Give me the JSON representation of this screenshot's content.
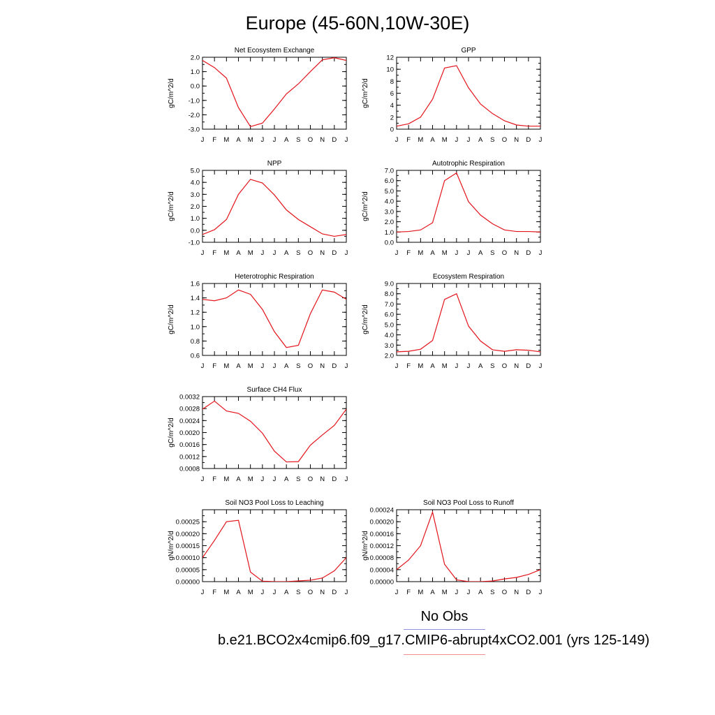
{
  "title": "Europe (45-60N,10W-30E)",
  "legend": {
    "obs_label": "No Obs",
    "obs_color": "#8f8fe6",
    "case_label": "b.e21.BCO2x4cmip6.f09_g17.CMIP6-abrupt4xCO2.001 (yrs 125-149)",
    "case_color": "#f08f8f"
  },
  "line_color": "#e3141b",
  "chart_data": [
    {
      "type": "line",
      "title": "Net Ecosystem Exchange",
      "ylabel": "gC/m^2/d",
      "categories": [
        "J",
        "F",
        "M",
        "A",
        "M",
        "J",
        "J",
        "A",
        "S",
        "O",
        "N",
        "D",
        "J"
      ],
      "values": [
        1.78,
        1.28,
        0.55,
        -1.5,
        -2.82,
        -2.58,
        -1.6,
        -0.55,
        0.15,
        1.0,
        1.82,
        1.97,
        1.78
      ],
      "ylim": [
        -3.0,
        2.0
      ],
      "yticks": [
        2.0,
        1.0,
        0.0,
        -1.0,
        -2.0,
        -3.0
      ],
      "ytick_labels": [
        "2.0",
        "1.0",
        "0.0",
        "-1.0",
        "-2.0",
        "-3.0"
      ],
      "yminor": 0.5
    },
    {
      "type": "line",
      "title": "GPP",
      "ylabel": "gC/m^2/d",
      "categories": [
        "J",
        "F",
        "M",
        "A",
        "M",
        "J",
        "J",
        "A",
        "S",
        "O",
        "N",
        "D",
        "J"
      ],
      "values": [
        0.5,
        0.9,
        2.0,
        5.0,
        10.2,
        10.6,
        6.9,
        4.2,
        2.6,
        1.4,
        0.7,
        0.5,
        0.5
      ],
      "ylim": [
        0,
        12
      ],
      "yticks": [
        12,
        10,
        8,
        6,
        4,
        2,
        0
      ],
      "ytick_labels": [
        "12",
        "10",
        "8",
        "6",
        "4",
        "2",
        "0"
      ],
      "yminor": 1
    },
    {
      "type": "line",
      "title": "NPP",
      "ylabel": "gC/m^2/d",
      "categories": [
        "J",
        "F",
        "M",
        "A",
        "M",
        "J",
        "J",
        "A",
        "S",
        "O",
        "N",
        "D",
        "J"
      ],
      "values": [
        -0.35,
        0.05,
        0.9,
        3.0,
        4.25,
        3.95,
        2.95,
        1.7,
        0.9,
        0.3,
        -0.3,
        -0.5,
        -0.35
      ],
      "ylim": [
        -1.0,
        5.0
      ],
      "yticks": [
        5.0,
        4.0,
        3.0,
        2.0,
        1.0,
        0.0,
        -1.0
      ],
      "ytick_labels": [
        "5.0",
        "4.0",
        "3.0",
        "2.0",
        "1.0",
        "0.0",
        "-1.0"
      ],
      "yminor": 0.5
    },
    {
      "type": "line",
      "title": "Autotrophic Respiration",
      "ylabel": "gC/m^2/d",
      "categories": [
        "J",
        "F",
        "M",
        "A",
        "M",
        "J",
        "J",
        "A",
        "S",
        "O",
        "N",
        "D",
        "J"
      ],
      "values": [
        1.0,
        1.05,
        1.2,
        1.9,
        6.0,
        6.75,
        3.95,
        2.65,
        1.8,
        1.2,
        1.05,
        1.05,
        1.0
      ],
      "ylim": [
        0,
        7.0
      ],
      "yticks": [
        7.0,
        6.0,
        5.0,
        4.0,
        3.0,
        2.0,
        1.0,
        0.0
      ],
      "ytick_labels": [
        "7.0",
        "6.0",
        "5.0",
        "4.0",
        "3.0",
        "2.0",
        "1.0",
        "0.0"
      ],
      "yminor": 0.5
    },
    {
      "type": "line",
      "title": "Heterotrophic Respiration",
      "ylabel": "gC/m^2/d",
      "categories": [
        "J",
        "F",
        "M",
        "A",
        "M",
        "J",
        "J",
        "A",
        "S",
        "O",
        "N",
        "D",
        "J"
      ],
      "values": [
        1.38,
        1.36,
        1.4,
        1.51,
        1.45,
        1.24,
        0.93,
        0.71,
        0.74,
        1.18,
        1.51,
        1.48,
        1.38
      ],
      "ylim": [
        0.6,
        1.6
      ],
      "yticks": [
        1.6,
        1.4,
        1.2,
        1.0,
        0.8,
        0.6
      ],
      "ytick_labels": [
        "1.6",
        "1.4",
        "1.2",
        "1.0",
        "0.8",
        "0.6"
      ],
      "yminor": 0.1
    },
    {
      "type": "line",
      "title": "Ecosystem Respiration",
      "ylabel": "gC/m^2/d",
      "categories": [
        "J",
        "F",
        "M",
        "A",
        "M",
        "J",
        "J",
        "A",
        "S",
        "O",
        "N",
        "D",
        "J"
      ],
      "values": [
        2.35,
        2.4,
        2.6,
        3.45,
        7.45,
        8.0,
        4.85,
        3.4,
        2.55,
        2.4,
        2.55,
        2.5,
        2.35
      ],
      "ylim": [
        2.0,
        9.0
      ],
      "yticks": [
        9.0,
        8.0,
        7.0,
        6.0,
        5.0,
        4.0,
        3.0,
        2.0
      ],
      "ytick_labels": [
        "9.0",
        "8.0",
        "7.0",
        "6.0",
        "5.0",
        "4.0",
        "3.0",
        "2.0"
      ],
      "yminor": 0.5
    },
    {
      "type": "line",
      "title": "Surface CH4 Flux",
      "ylabel": "gC/m^2/d",
      "categories": [
        "J",
        "F",
        "M",
        "A",
        "M",
        "J",
        "J",
        "A",
        "S",
        "O",
        "N",
        "D",
        "J"
      ],
      "values": [
        0.00278,
        0.00305,
        0.00272,
        0.00264,
        0.00238,
        0.00198,
        0.00138,
        0.00102,
        0.00103,
        0.00158,
        0.00192,
        0.00224,
        0.00278
      ],
      "ylim": [
        0.0008,
        0.0032
      ],
      "yticks": [
        0.0032,
        0.0028,
        0.0024,
        0.002,
        0.0016,
        0.0012,
        0.0008
      ],
      "ytick_labels": [
        "0.0032",
        "0.0028",
        "0.0024",
        "0.0020",
        "0.0016",
        "0.0012",
        "0.0008"
      ],
      "yminor": 0.0002
    },
    {
      "type": "line",
      "title": "Soil NO3 Pool Loss to Leaching",
      "ylabel": "gN/m^2/d",
      "categories": [
        "J",
        "F",
        "M",
        "A",
        "M",
        "J",
        "J",
        "A",
        "S",
        "O",
        "N",
        "D",
        "J"
      ],
      "values": [
        0.0001,
        0.000172,
        0.00025,
        0.000256,
        4e-05,
        2e-06,
        0.0,
        0.0,
        3e-06,
        6e-06,
        1.5e-05,
        4.5e-05,
        0.0001
      ],
      "ylim": [
        0,
        0.0003
      ],
      "yticks": [
        0.00025,
        0.0002,
        0.00015,
        0.0001,
        5e-05,
        0.0
      ],
      "ytick_labels": [
        "0.00025",
        "0.00020",
        "0.00015",
        "0.00010",
        "0.00005",
        "0.00000"
      ],
      "yminor": 2.5e-05
    },
    {
      "type": "line",
      "title": "Soil NO3 Pool Loss to Runoff",
      "ylabel": "gN/m^2/d",
      "categories": [
        "J",
        "F",
        "M",
        "A",
        "M",
        "J",
        "J",
        "A",
        "S",
        "O",
        "N",
        "D",
        "J"
      ],
      "values": [
        4e-05,
        7.2e-05,
        0.00012,
        0.000232,
        5.8e-05,
        6e-06,
        0.0,
        0.0,
        2e-06,
        9e-06,
        1.4e-05,
        2.4e-05,
        4e-05
      ],
      "ylim": [
        0,
        0.00024
      ],
      "yticks": [
        0.00024,
        0.0002,
        0.00016,
        0.00012,
        8e-05,
        4e-05,
        0.0
      ],
      "ytick_labels": [
        "0.00024",
        "0.00020",
        "0.00016",
        "0.00012",
        "0.00008",
        "0.00004",
        "0.00000"
      ],
      "yminor": 2e-05
    }
  ]
}
